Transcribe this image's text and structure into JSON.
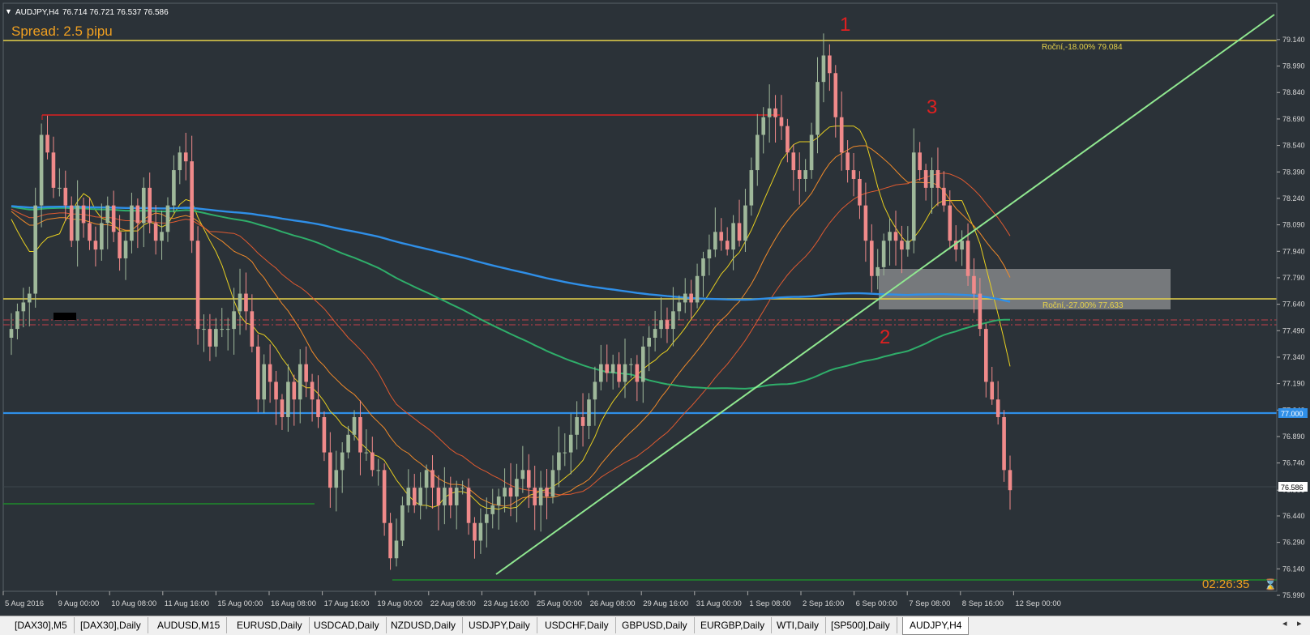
{
  "window": {
    "header_symbol": "AUDJPY,H4",
    "header_quotes": "76.714 76.721 76.537 76.586",
    "spread_label": "Spread: 2.5 pipu",
    "timer": "02:26:35"
  },
  "annotations": [
    {
      "text": "1"
    },
    {
      "text": "2"
    },
    {
      "text": "3"
    }
  ],
  "levels": {
    "annual_high": {
      "label": "Roční,-18.00% 79.084",
      "value": 79.084,
      "color": "#e6d24a"
    },
    "annual_low": {
      "label": "Roční,-27.00% 77.633",
      "value": 77.633,
      "color": "#e6d24a"
    },
    "blue_level": {
      "label": "77.000",
      "value": 77.0,
      "color": "#2f8fe8"
    },
    "current_price": {
      "label": "76.586",
      "value": 76.586
    }
  },
  "colors": {
    "bull": "#9fb89a",
    "bear": "#f08a8a",
    "background": "#2b3238",
    "ma_fast": "#e8d020",
    "ma_mid": "#f08a2a",
    "ma_slow": "#e05a30",
    "ma_green": "#2fae6a",
    "ma_blue": "#2f8fe8",
    "trendline": "#90e890",
    "resistance": "#e02020",
    "support": "#1e8a2a"
  },
  "chart_data": {
    "type": "candlestick",
    "symbol": "AUDJPY",
    "timeframe": "H4",
    "ylim": [
      75.99,
      79.19
    ],
    "y_ticks": [
      "79.140",
      "78.990",
      "78.840",
      "78.690",
      "78.540",
      "78.390",
      "78.240",
      "78.090",
      "77.940",
      "77.790",
      "77.640",
      "77.490",
      "77.340",
      "77.190",
      "77.040",
      "76.890",
      "76.740",
      "76.586",
      "76.440",
      "76.290",
      "76.140",
      "75.990"
    ],
    "x_ticks": [
      "5 Aug 2016",
      "9 Aug 00:00",
      "10 Aug 08:00",
      "11 Aug 16:00",
      "15 Aug 00:00",
      "16 Aug 08:00",
      "17 Aug 16:00",
      "19 Aug 00:00",
      "22 Aug 08:00",
      "23 Aug 16:00",
      "25 Aug 00:00",
      "26 Aug 08:00",
      "29 Aug 16:00",
      "31 Aug 00:00",
      "1 Sep 08:00",
      "2 Sep 16:00",
      "6 Sep 00:00",
      "7 Sep 08:00",
      "8 Sep 16:00",
      "12 Sep 00:00"
    ],
    "closes": [
      77.5,
      77.6,
      77.65,
      77.7,
      78.2,
      78.6,
      78.5,
      78.3,
      78.3,
      78.2,
      78.0,
      78.2,
      78.1,
      78.0,
      77.95,
      78.1,
      78.2,
      78.05,
      77.9,
      78.0,
      78.2,
      78.1,
      78.3,
      78.1,
      78.0,
      78.05,
      78.2,
      78.4,
      78.5,
      78.45,
      78.0,
      77.5,
      77.5,
      77.4,
      77.5,
      77.5,
      77.5,
      77.6,
      77.7,
      77.6,
      77.4,
      77.1,
      77.3,
      77.2,
      77.1,
      77.0,
      77.2,
      77.1,
      77.3,
      77.2,
      77.1,
      77.0,
      76.8,
      76.6,
      76.7,
      76.8,
      76.9,
      77.0,
      76.8,
      76.8,
      76.7,
      76.7,
      76.4,
      76.2,
      76.3,
      76.5,
      76.6,
      76.5,
      76.6,
      76.7,
      76.6,
      76.5,
      76.6,
      76.5,
      76.6,
      76.6,
      76.4,
      76.3,
      76.4,
      76.45,
      76.5,
      76.55,
      76.6,
      76.55,
      76.65,
      76.7,
      76.6,
      76.5,
      76.6,
      76.55,
      76.7,
      76.8,
      76.8,
      76.9,
      77.0,
      76.95,
      77.1,
      77.2,
      77.3,
      77.25,
      77.3,
      77.2,
      77.3,
      77.3,
      77.2,
      77.4,
      77.45,
      77.5,
      77.55,
      77.5,
      77.6,
      77.65,
      77.7,
      77.65,
      77.8,
      77.9,
      77.95,
      78.05,
      78.0,
      77.95,
      78.1,
      78.0,
      78.2,
      78.4,
      78.6,
      78.7,
      78.75,
      78.7,
      78.65,
      78.5,
      78.4,
      78.35,
      78.4,
      78.6,
      78.9,
      79.05,
      78.95,
      78.7,
      78.5,
      78.4,
      78.35,
      78.2,
      78.0,
      77.8,
      77.85,
      78.0,
      78.05,
      78.0,
      77.95,
      78.0,
      78.5,
      78.4,
      78.3,
      78.4,
      78.3,
      78.2,
      78.0,
      77.95,
      78.0,
      77.8,
      77.7,
      77.5,
      77.2,
      77.1,
      77.0,
      76.7,
      76.586
    ],
    "moving_averages": [
      {
        "period": 9
      },
      {
        "period": 21
      },
      {
        "period": 34
      },
      {
        "period": 100
      },
      {
        "period": 200
      }
    ]
  },
  "tabs": [
    {
      "label": "[DAX30],M5"
    },
    {
      "label": "[DAX30],Daily"
    },
    {
      "label": "AUDUSD,M15"
    },
    {
      "label": "EURUSD,Daily"
    },
    {
      "label": "USDCAD,Daily"
    },
    {
      "label": "NZDUSD,Daily"
    },
    {
      "label": "USDJPY,Daily"
    },
    {
      "label": "USDCHF,Daily"
    },
    {
      "label": "GBPUSD,Daily"
    },
    {
      "label": "EURGBP,Daily"
    },
    {
      "label": "WTI,Daily"
    },
    {
      "label": "[SP500],Daily"
    },
    {
      "label": "AUDJPY,H4",
      "active": true
    }
  ]
}
